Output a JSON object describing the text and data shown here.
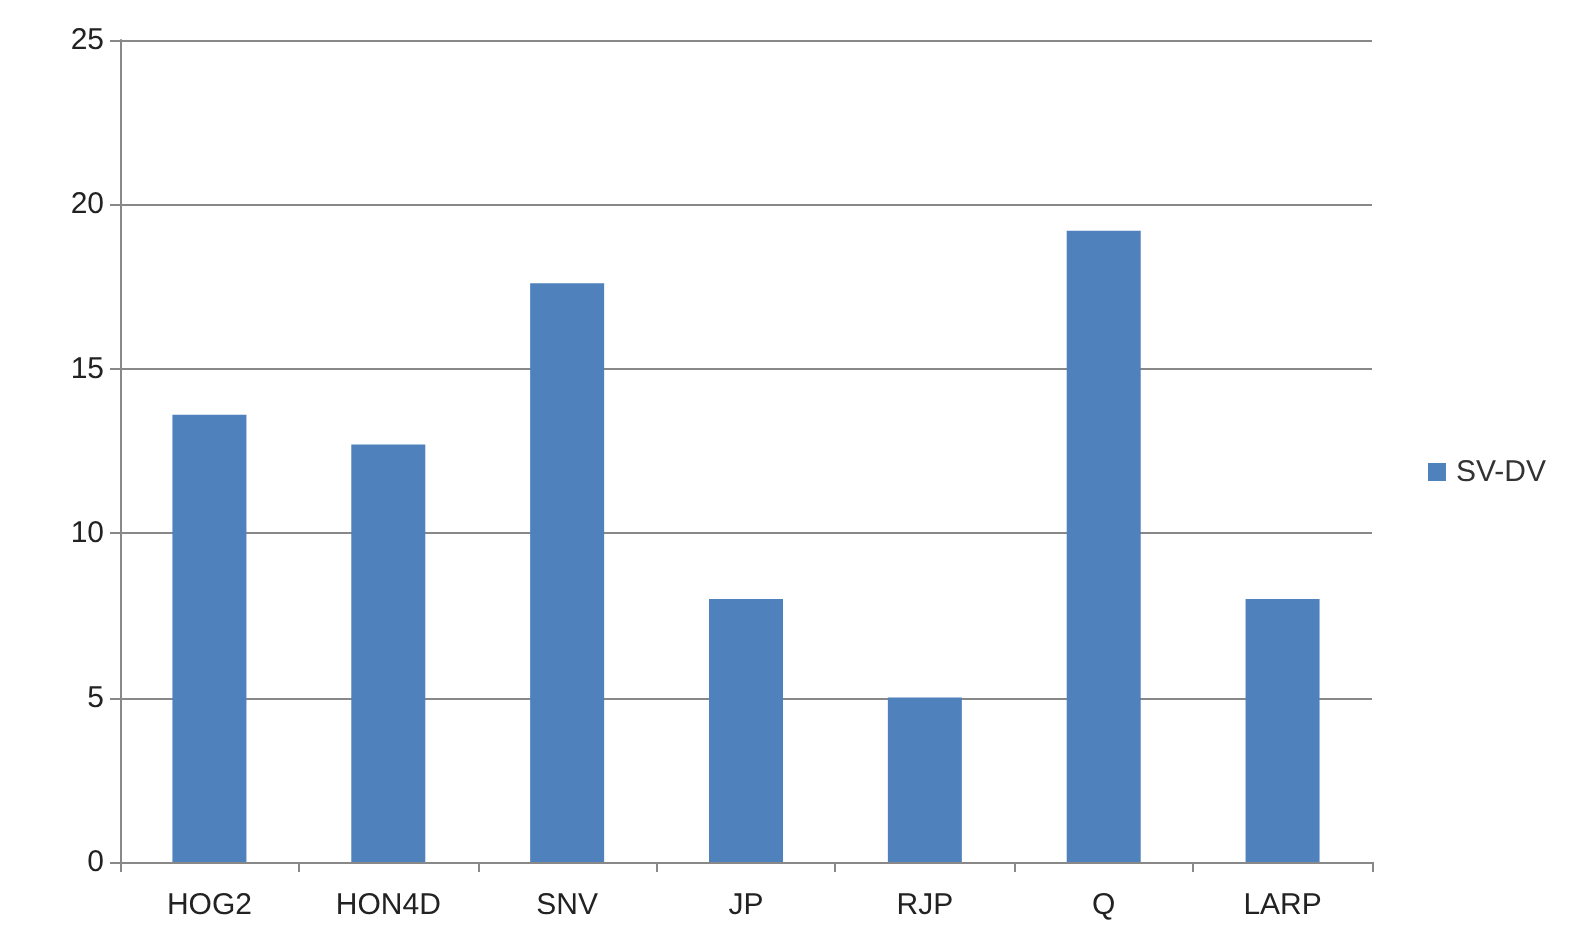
{
  "chart_data": {
    "type": "bar",
    "categories": [
      "HOG2",
      "HON4D",
      "SNV",
      "JP",
      "RJP",
      "Q",
      "LARP"
    ],
    "series": [
      {
        "name": "SV-DV",
        "color": "#4f81bd",
        "values": [
          13.6,
          12.7,
          17.6,
          8.0,
          5.0,
          19.2,
          8.0
        ]
      }
    ],
    "ylim": [
      0,
      25
    ],
    "yticks": [
      0,
      5,
      10,
      15,
      20,
      25
    ],
    "grid": "y",
    "legend": "right"
  }
}
